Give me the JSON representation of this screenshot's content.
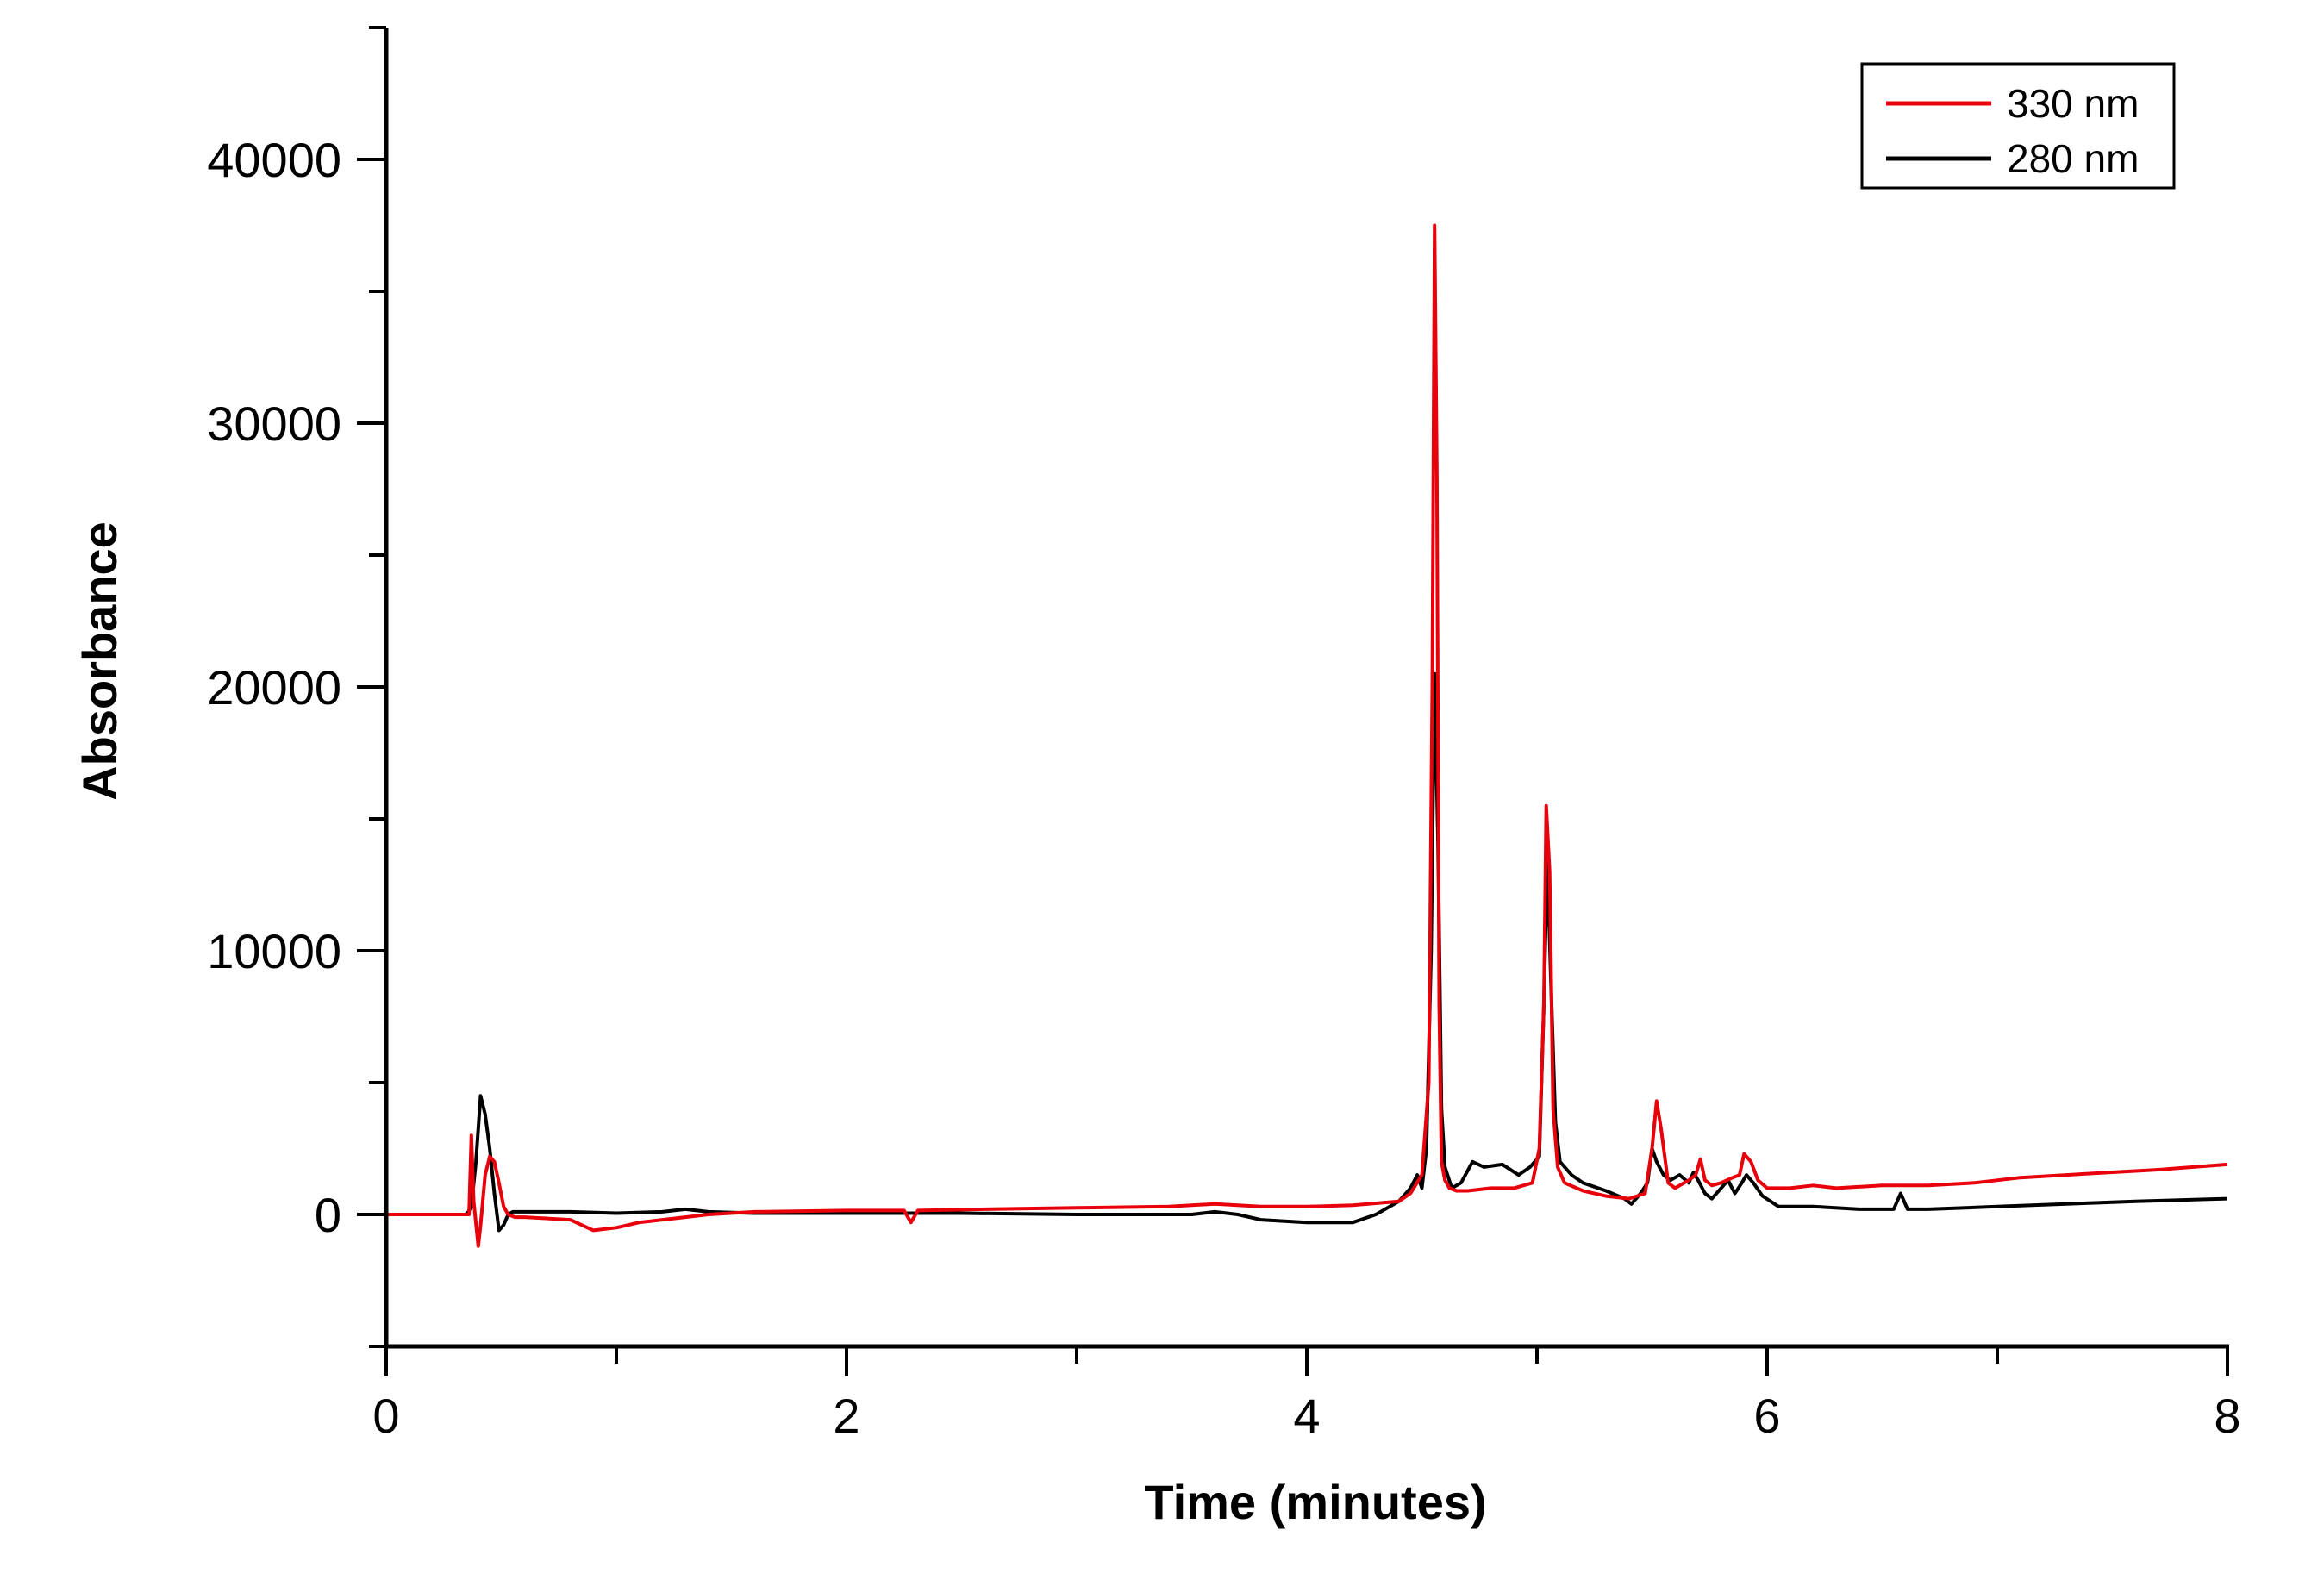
{
  "chart_data": {
    "type": "line",
    "title": "",
    "xlabel": "Time (minutes)",
    "ylabel": "Absorbance",
    "xlim": [
      0,
      8
    ],
    "ylim": [
      -5000,
      45000
    ],
    "x_ticks": [
      0,
      2,
      4,
      6,
      8
    ],
    "y_ticks": [
      0,
      10000,
      20000,
      30000,
      40000
    ],
    "grid": false,
    "legend": {
      "position": "top-right",
      "entries": [
        "330 nm",
        "280 nm"
      ]
    },
    "series": [
      {
        "name": "330 nm",
        "color": "#e8000b",
        "x": [
          0,
          0.36,
          0.37,
          0.38,
          0.4,
          0.41,
          0.43,
          0.45,
          0.47,
          0.49,
          0.51,
          0.53,
          0.56,
          0.6,
          0.8,
          0.9,
          1.0,
          1.1,
          1.2,
          1.3,
          1.4,
          1.6,
          2.0,
          2.25,
          2.28,
          2.31,
          2.6,
          3.0,
          3.4,
          3.6,
          3.8,
          4.0,
          4.2,
          4.4,
          4.45,
          4.5,
          4.53,
          4.545,
          4.555,
          4.565,
          4.575,
          4.585,
          4.6,
          4.62,
          4.65,
          4.7,
          4.8,
          4.9,
          4.98,
          5.01,
          5.03,
          5.04,
          5.055,
          5.07,
          5.09,
          5.12,
          5.2,
          5.3,
          5.4,
          5.47,
          5.5,
          5.52,
          5.54,
          5.57,
          5.6,
          5.66,
          5.69,
          5.71,
          5.73,
          5.76,
          5.8,
          5.85,
          5.88,
          5.9,
          5.93,
          5.96,
          6.0,
          6.1,
          6.2,
          6.3,
          6.5,
          6.7,
          6.9,
          7.1,
          7.3,
          7.5,
          7.7,
          8.0
        ],
        "y": [
          0,
          0,
          3000,
          500,
          -1200,
          -400,
          1500,
          2200,
          2000,
          1200,
          300,
          0,
          -100,
          -100,
          -200,
          -600,
          -500,
          -300,
          -200,
          -100,
          0,
          100,
          150,
          150,
          -300,
          150,
          200,
          250,
          300,
          400,
          300,
          300,
          350,
          500,
          800,
          1500,
          5000,
          20000,
          37500,
          28000,
          8000,
          2000,
          1300,
          1000,
          900,
          900,
          1000,
          1000,
          1200,
          2500,
          8000,
          15500,
          13000,
          4000,
          1800,
          1200,
          900,
          700,
          600,
          800,
          2500,
          4300,
          3200,
          1200,
          1000,
          1300,
          1500,
          2100,
          1300,
          1100,
          1200,
          1400,
          1500,
          2300,
          2000,
          1300,
          1000,
          1000,
          1100,
          1000,
          1100,
          1100,
          1200,
          1400,
          1500,
          1600,
          1700,
          1900
        ]
      },
      {
        "name": "280 nm",
        "color": "#000000",
        "x": [
          0,
          0.35,
          0.37,
          0.39,
          0.41,
          0.43,
          0.45,
          0.47,
          0.49,
          0.51,
          0.53,
          0.55,
          0.58,
          0.6,
          0.8,
          1.0,
          1.2,
          1.3,
          1.4,
          1.6,
          2.0,
          2.5,
          3.0,
          3.5,
          3.6,
          3.7,
          3.8,
          4.0,
          4.2,
          4.3,
          4.4,
          4.45,
          4.48,
          4.5,
          4.52,
          4.54,
          4.555,
          4.57,
          4.585,
          4.6,
          4.63,
          4.67,
          4.72,
          4.77,
          4.85,
          4.92,
          4.97,
          5.01,
          5.03,
          5.045,
          5.06,
          5.08,
          5.1,
          5.15,
          5.2,
          5.3,
          5.38,
          5.41,
          5.45,
          5.48,
          5.5,
          5.52,
          5.55,
          5.58,
          5.62,
          5.66,
          5.68,
          5.7,
          5.73,
          5.76,
          5.8,
          5.83,
          5.86,
          5.89,
          5.91,
          5.94,
          5.98,
          6.05,
          6.2,
          6.4,
          6.55,
          6.58,
          6.61,
          6.7,
          7.0,
          7.3,
          7.6,
          8.0
        ],
        "y": [
          0,
          0,
          300,
          2000,
          4500,
          3800,
          2500,
          800,
          -600,
          -400,
          0,
          100,
          100,
          100,
          100,
          50,
          100,
          200,
          100,
          50,
          50,
          50,
          0,
          0,
          100,
          0,
          -200,
          -300,
          -300,
          0,
          500,
          1000,
          1500,
          1000,
          2500,
          10000,
          20500,
          14000,
          4000,
          1800,
          1000,
          1200,
          2000,
          1800,
          1900,
          1500,
          1800,
          2200,
          8000,
          13500,
          9000,
          3500,
          2000,
          1500,
          1200,
          900,
          600,
          400,
          800,
          1200,
          2500,
          2000,
          1500,
          1300,
          1500,
          1200,
          1600,
          1300,
          800,
          600,
          1000,
          1300,
          800,
          1200,
          1500,
          1200,
          700,
          300,
          300,
          200,
          200,
          800,
          200,
          200,
          300,
          400,
          500,
          600
        ]
      }
    ]
  }
}
